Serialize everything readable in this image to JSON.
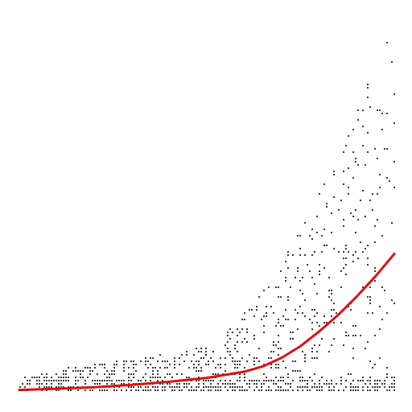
{
  "chart_data": {
    "type": "scatter",
    "title": "",
    "xlabel": "",
    "ylabel": "",
    "xlim": [
      0,
      100
    ],
    "ylim": [
      0,
      100
    ],
    "grid": false,
    "legend": "none",
    "colors": {
      "points": "#3a3a3a",
      "fit_line": "#e01010"
    },
    "series": [
      {
        "kind": "points",
        "generator": {
          "seed": 7,
          "count": 1100,
          "x_range": [
            0,
            100
          ],
          "envelope": "exponential"
        }
      },
      {
        "kind": "fit_line",
        "x": [
          0,
          10,
          20,
          30,
          40,
          50,
          60,
          65,
          70,
          75,
          80,
          85,
          90,
          95,
          100
        ],
        "y": [
          0.3,
          0.6,
          1.0,
          1.6,
          2.4,
          3.4,
          5.0,
          6.4,
          8.6,
          11.6,
          15.4,
          19.6,
          24.4,
          29.6,
          35.4
        ]
      }
    ]
  }
}
